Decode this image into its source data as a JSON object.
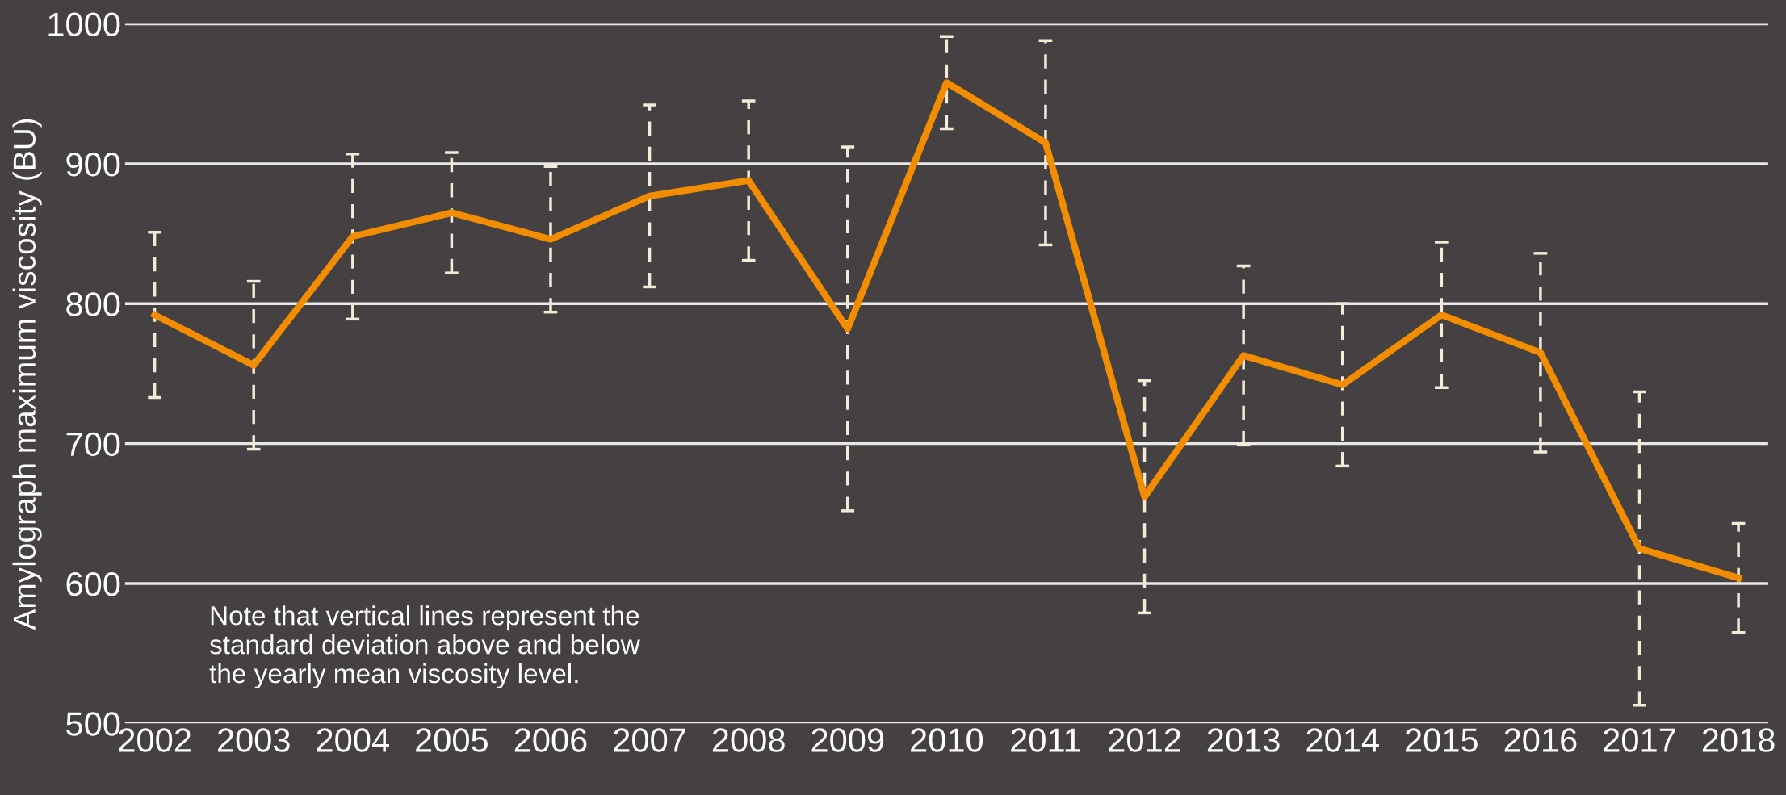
{
  "chart_data": {
    "type": "line",
    "ylabel": "Amylograph maximum viscosity (BU)",
    "categories": [
      "2002",
      "2003",
      "2004",
      "2005",
      "2006",
      "2007",
      "2008",
      "2009",
      "2010",
      "2011",
      "2012",
      "2013",
      "2014",
      "2015",
      "2016",
      "2017",
      "2018"
    ],
    "series": [
      {
        "color": "#f28c00",
        "values": [
          792,
          756,
          848,
          865,
          846,
          877,
          888,
          782,
          958,
          915,
          662,
          763,
          742,
          792,
          765,
          625,
          604
        ],
        "errors": [
          59,
          60,
          59,
          43,
          52,
          65,
          57,
          130,
          33,
          73,
          83,
          64,
          58,
          52,
          71,
          112,
          39
        ]
      }
    ],
    "ylim": [
      500,
      1000
    ],
    "yticks": [
      500,
      600,
      700,
      800,
      900,
      1000
    ],
    "grid": "y",
    "legend": false,
    "annotations": [
      "Note that vertical lines represent the\nstandard deviation above and below\nthe yearly mean viscosity level."
    ]
  }
}
